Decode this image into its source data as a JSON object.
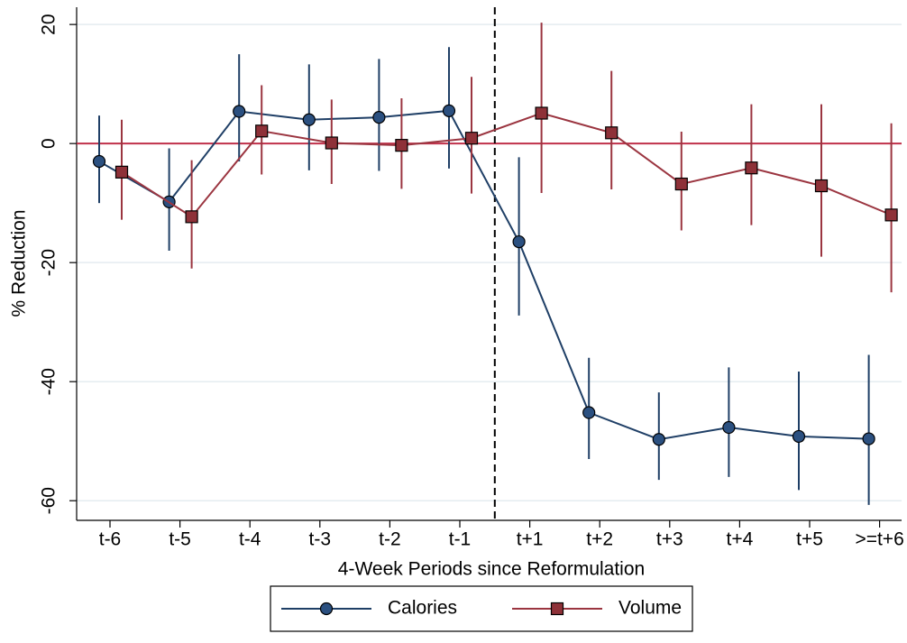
{
  "chart_data": {
    "type": "line",
    "x_label": "4-Week Periods since Reformulation",
    "y_label": "% Reduction",
    "categories": [
      "t-6",
      "t-5",
      "t-4",
      "t-3",
      "t-2",
      "t-1",
      "t+1",
      "t+2",
      "t+3",
      "t+4",
      "t+5",
      ">=t+6"
    ],
    "series": [
      {
        "name": "Calories",
        "color": "#1f3f66",
        "marker": "circle",
        "marker_color": "#2b5080",
        "values": [
          -3,
          -9.8,
          5.4,
          4,
          4.4,
          5.5,
          -16.5,
          -45.2,
          -49.7,
          -47.7,
          -49.2,
          -49.6
        ],
        "ci_low": [
          -10,
          -18,
          -3,
          -4.5,
          -4.6,
          -4.2,
          -28.9,
          -53,
          -56.5,
          -56,
          -58.2,
          -60.7
        ],
        "ci_high": [
          4.7,
          -0.8,
          15,
          13.3,
          14.2,
          16.2,
          -2.3,
          -36,
          -41.8,
          -37.6,
          -38.3,
          -35.5
        ]
      },
      {
        "name": "Volume",
        "color": "#9b3540",
        "marker": "square",
        "marker_color": "#8e3138",
        "values": [
          -4.8,
          -12.3,
          2.1,
          0.1,
          -0.3,
          0.9,
          5.1,
          1.8,
          -6.8,
          -4.1,
          -7.1,
          -12
        ],
        "ci_low": [
          -12.8,
          -21,
          -5.2,
          -6.8,
          -7.6,
          -8.4,
          -8.3,
          -7.7,
          -14.6,
          -13.7,
          -19,
          -25
        ],
        "ci_high": [
          4,
          -2.8,
          9.8,
          7.4,
          7.6,
          11.2,
          20.3,
          12.2,
          2,
          6.6,
          6.6,
          3.4
        ]
      }
    ],
    "ylim": [
      -63.3,
      22.9
    ],
    "yticks": [
      -60,
      -40,
      -20,
      0,
      20
    ],
    "reference_line": 0,
    "reference_color": "#c0304a",
    "grid": true,
    "legend": "bottom"
  }
}
